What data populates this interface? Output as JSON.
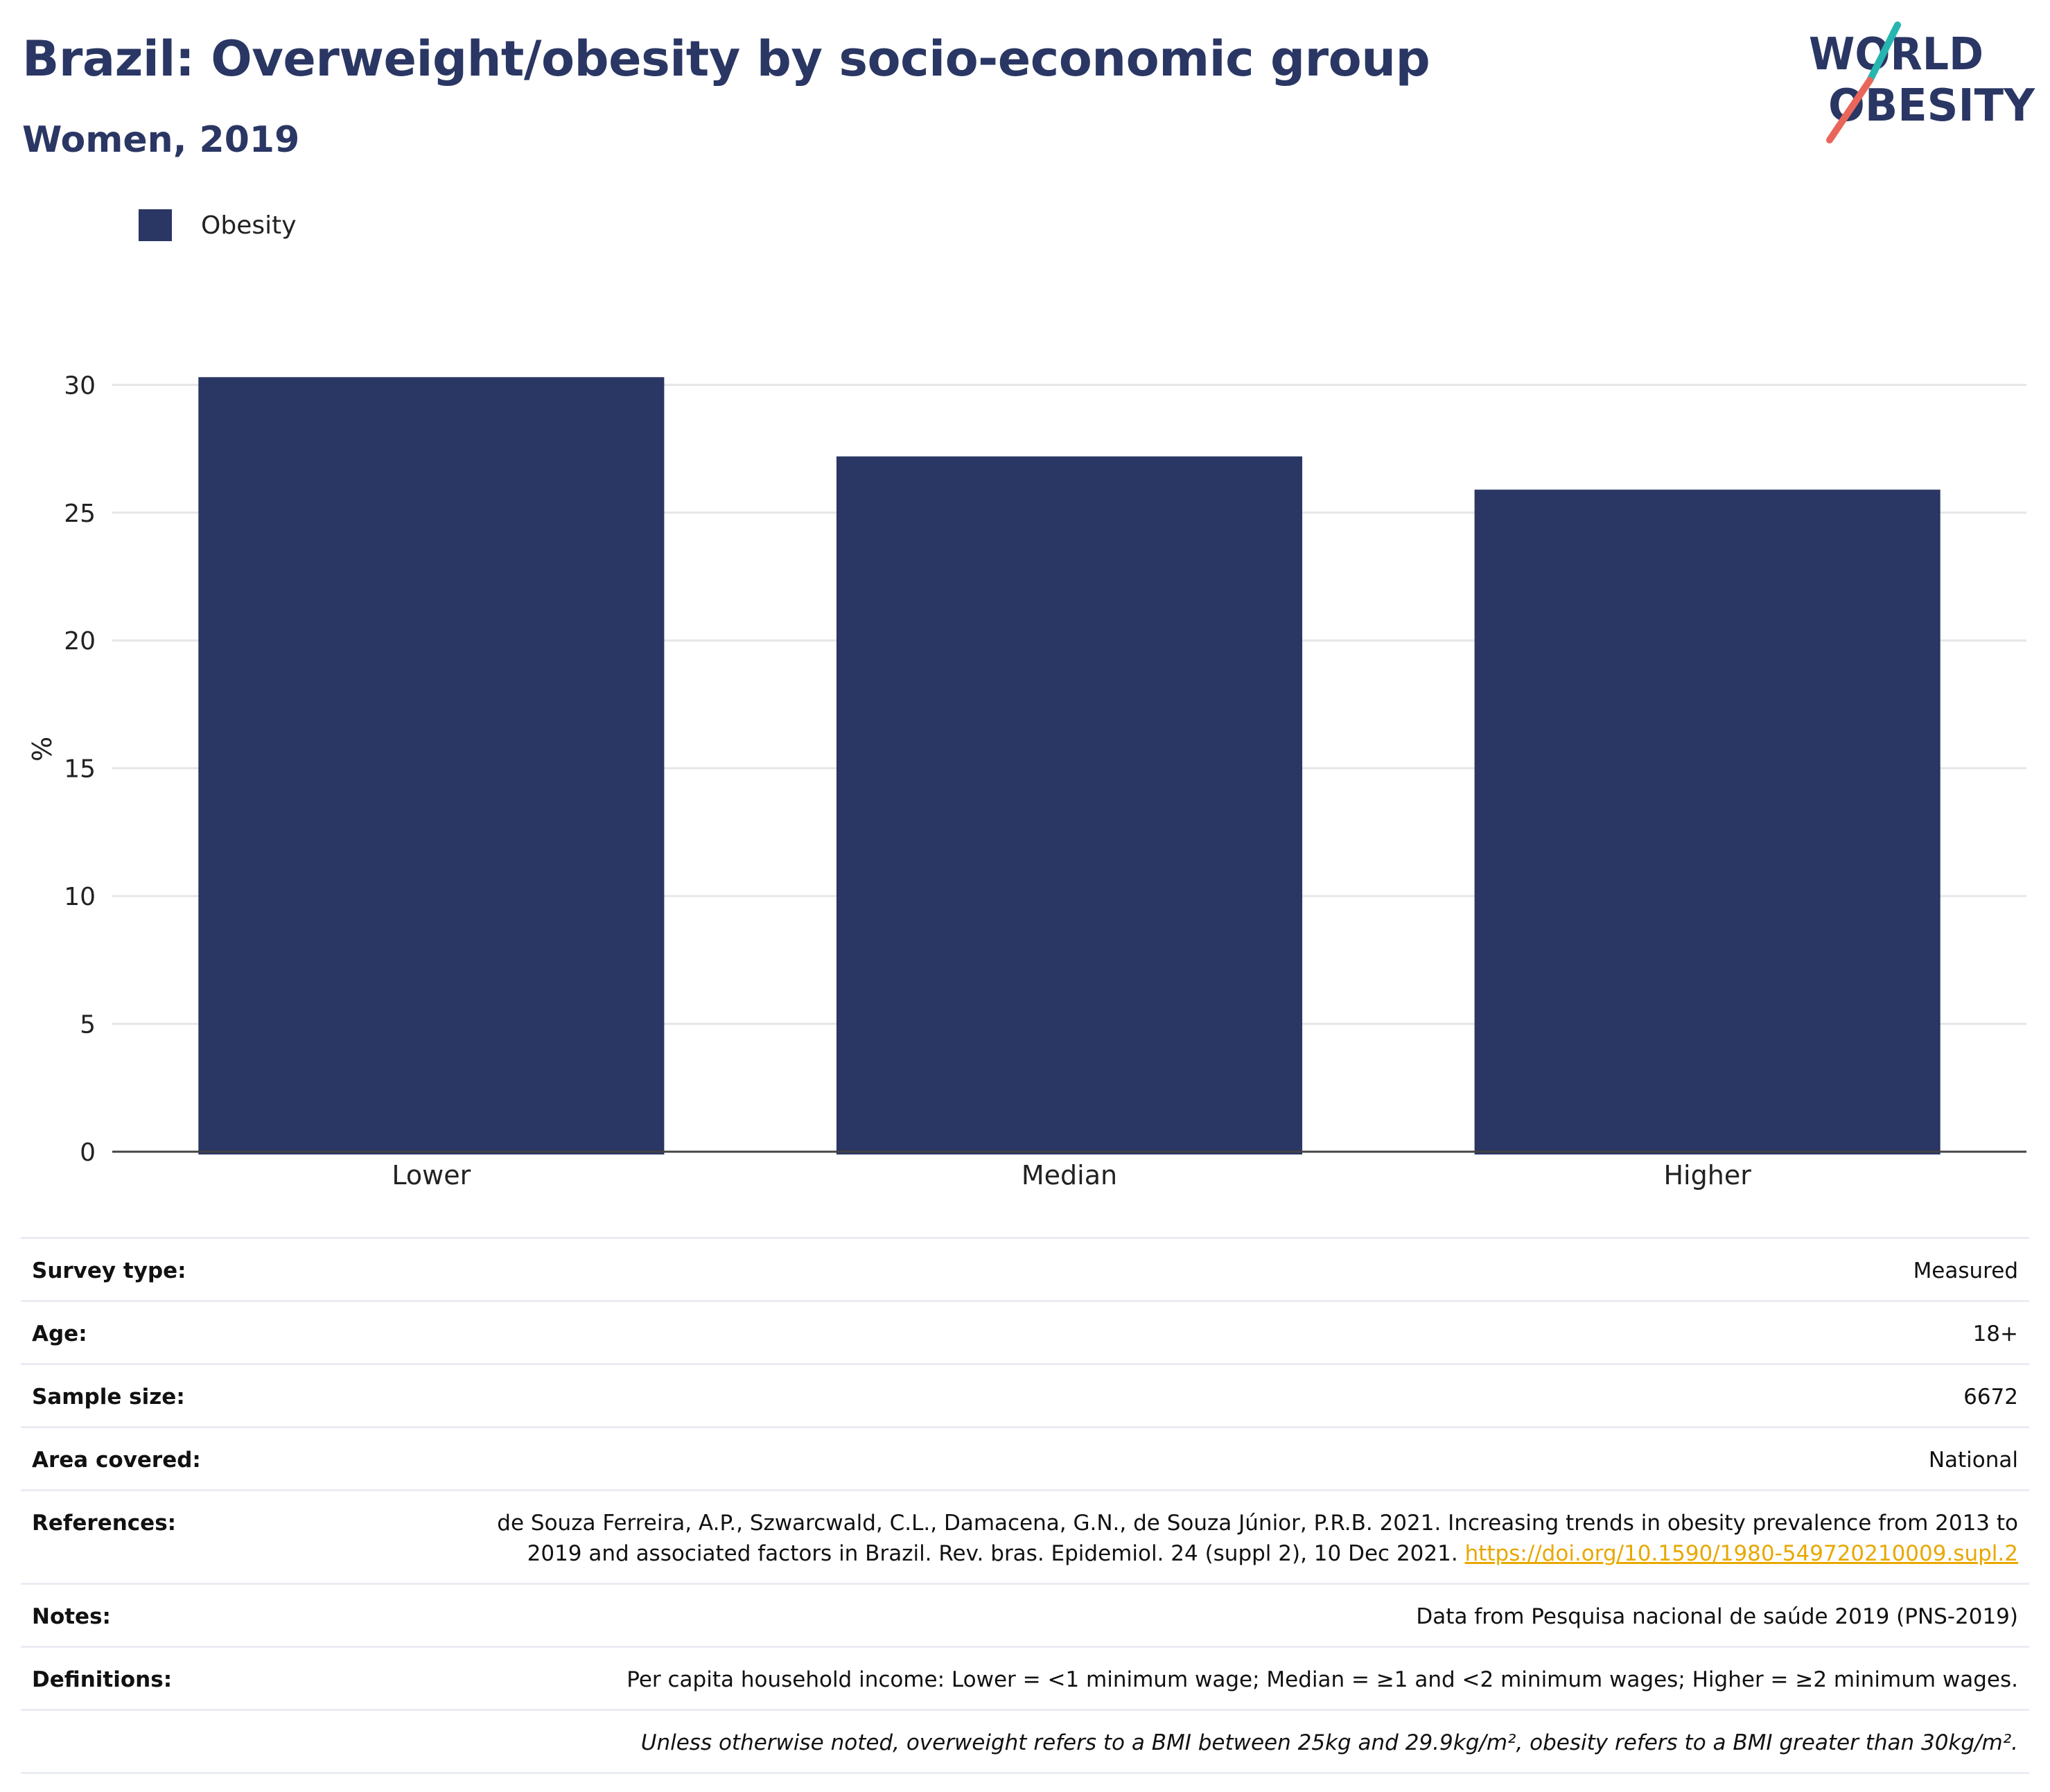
{
  "header": {
    "title": "Brazil: Overweight/obesity by socio-economic group",
    "subtitle": "Women, 2019"
  },
  "logo": {
    "line1": "WORLD",
    "line2": "OBESITY",
    "colors": {
      "text": "#2a3663",
      "slash_teal": "#27b5b0",
      "slash_coral": "#e8665a"
    }
  },
  "colors": {
    "bar": "#2a3663",
    "grid": "#e6e6e6",
    "axis": "#444444",
    "link": "#e8a800"
  },
  "chart_data": {
    "type": "bar",
    "categories": [
      "Lower",
      "Median",
      "Higher"
    ],
    "series": [
      {
        "name": "Obesity",
        "values": [
          30.3,
          27.2,
          25.9
        ]
      }
    ],
    "ylabel": "%",
    "xlabel": "",
    "ylim": [
      0,
      31.5
    ],
    "yticks": [
      0,
      5,
      10,
      15,
      20,
      25,
      30
    ],
    "grid": true,
    "legend_position": "top-left"
  },
  "info": {
    "rows": [
      {
        "label": "Survey type:",
        "value": "Measured"
      },
      {
        "label": "Age:",
        "value": "18+"
      },
      {
        "label": "Sample size:",
        "value": "6672"
      },
      {
        "label": "Area covered:",
        "value": "National"
      },
      {
        "label": "References:",
        "value": "de Souza Ferreira, A.P., Szwarcwald, C.L., Damacena, G.N., de Souza Júnior, P.R.B. 2021. Increasing trends in obesity prevalence from 2013 to 2019 and associated factors in Brazil. Rev. bras. Epidemiol. 24 (suppl 2), 10 Dec 2021.",
        "link": "https://doi.org/10.1590/1980-549720210009.supl.2"
      },
      {
        "label": "Notes:",
        "value": "Data from Pesquisa nacional de saúde 2019 (PNS-2019)"
      },
      {
        "label": "Definitions:",
        "value": "Per capita household income: Lower = <1 minimum wage; Median = ≥1 and <2 minimum wages; Higher = ≥2 minimum wages."
      }
    ],
    "footnote": "Unless otherwise noted, overweight refers to a BMI between 25kg and 29.9kg/m², obesity refers to a BMI greater than 30kg/m²."
  }
}
